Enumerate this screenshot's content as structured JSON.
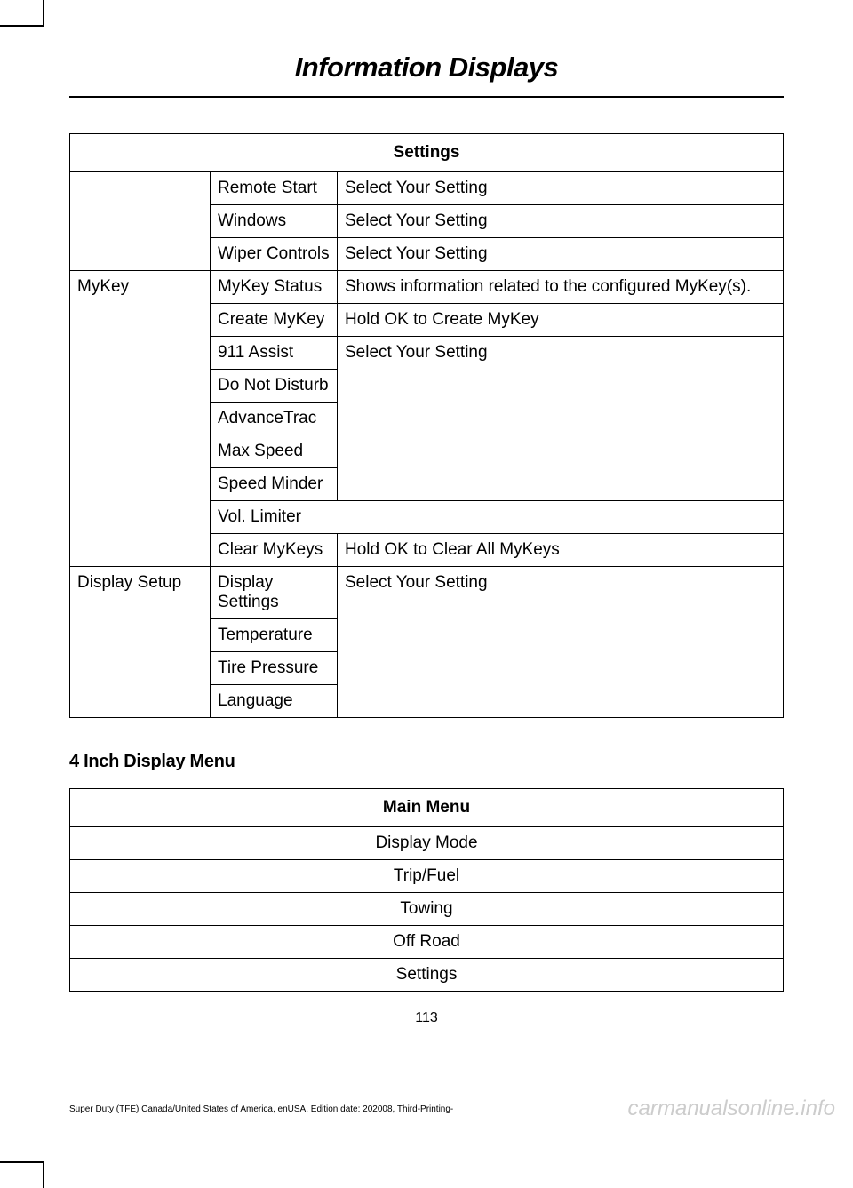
{
  "page": {
    "title": "Information Displays",
    "number": "113",
    "footer": "Super Duty (TFE) Canada/United States of America, enUSA, Edition date: 202008, Third-Printing-",
    "watermark": "carmanualsonline.info"
  },
  "settings_table": {
    "header": "Settings",
    "rows": [
      {
        "c1": "",
        "c2": "Remote Start",
        "c3": "Select Your Setting"
      },
      {
        "c1": "",
        "c2": "Windows",
        "c3": "Select Your Setting"
      },
      {
        "c1": "",
        "c2": "Wiper Controls",
        "c3": "Select Your Setting"
      },
      {
        "c1": "MyKey",
        "c2": "MyKey Status",
        "c3": "Shows information related to the configured MyKey(s)."
      },
      {
        "c1": "",
        "c2": "Create MyKey",
        "c3": "Hold OK to Create MyKey"
      },
      {
        "c1": "",
        "c2": "911 Assist",
        "c3": "Select Your Setting"
      },
      {
        "c1": "",
        "c2": "Do Not Disturb",
        "c3": ""
      },
      {
        "c1": "",
        "c2": "AdvanceTrac",
        "c3": ""
      },
      {
        "c1": "",
        "c2": "Max Speed",
        "c3": ""
      },
      {
        "c1": "",
        "c2": "Speed Minder",
        "c3": ""
      },
      {
        "c1": "",
        "c2": "Vol. Limiter",
        "c3": ""
      },
      {
        "c1": "",
        "c2": "Clear MyKeys",
        "c3": "Hold OK to Clear All MyKeys"
      },
      {
        "c1": "Display Setup",
        "c2": "Display Settings",
        "c3": "Select Your Setting"
      },
      {
        "c1": "",
        "c2": "Temperature",
        "c3": ""
      },
      {
        "c1": "",
        "c2": "Tire Pressure",
        "c3": ""
      },
      {
        "c1": "",
        "c2": "Language",
        "c3": ""
      }
    ]
  },
  "section2": {
    "heading": "4 Inch Display Menu",
    "table_header": "Main Menu",
    "items": [
      "Display Mode",
      "Trip/Fuel",
      "Towing",
      "Off Road",
      "Settings"
    ]
  }
}
